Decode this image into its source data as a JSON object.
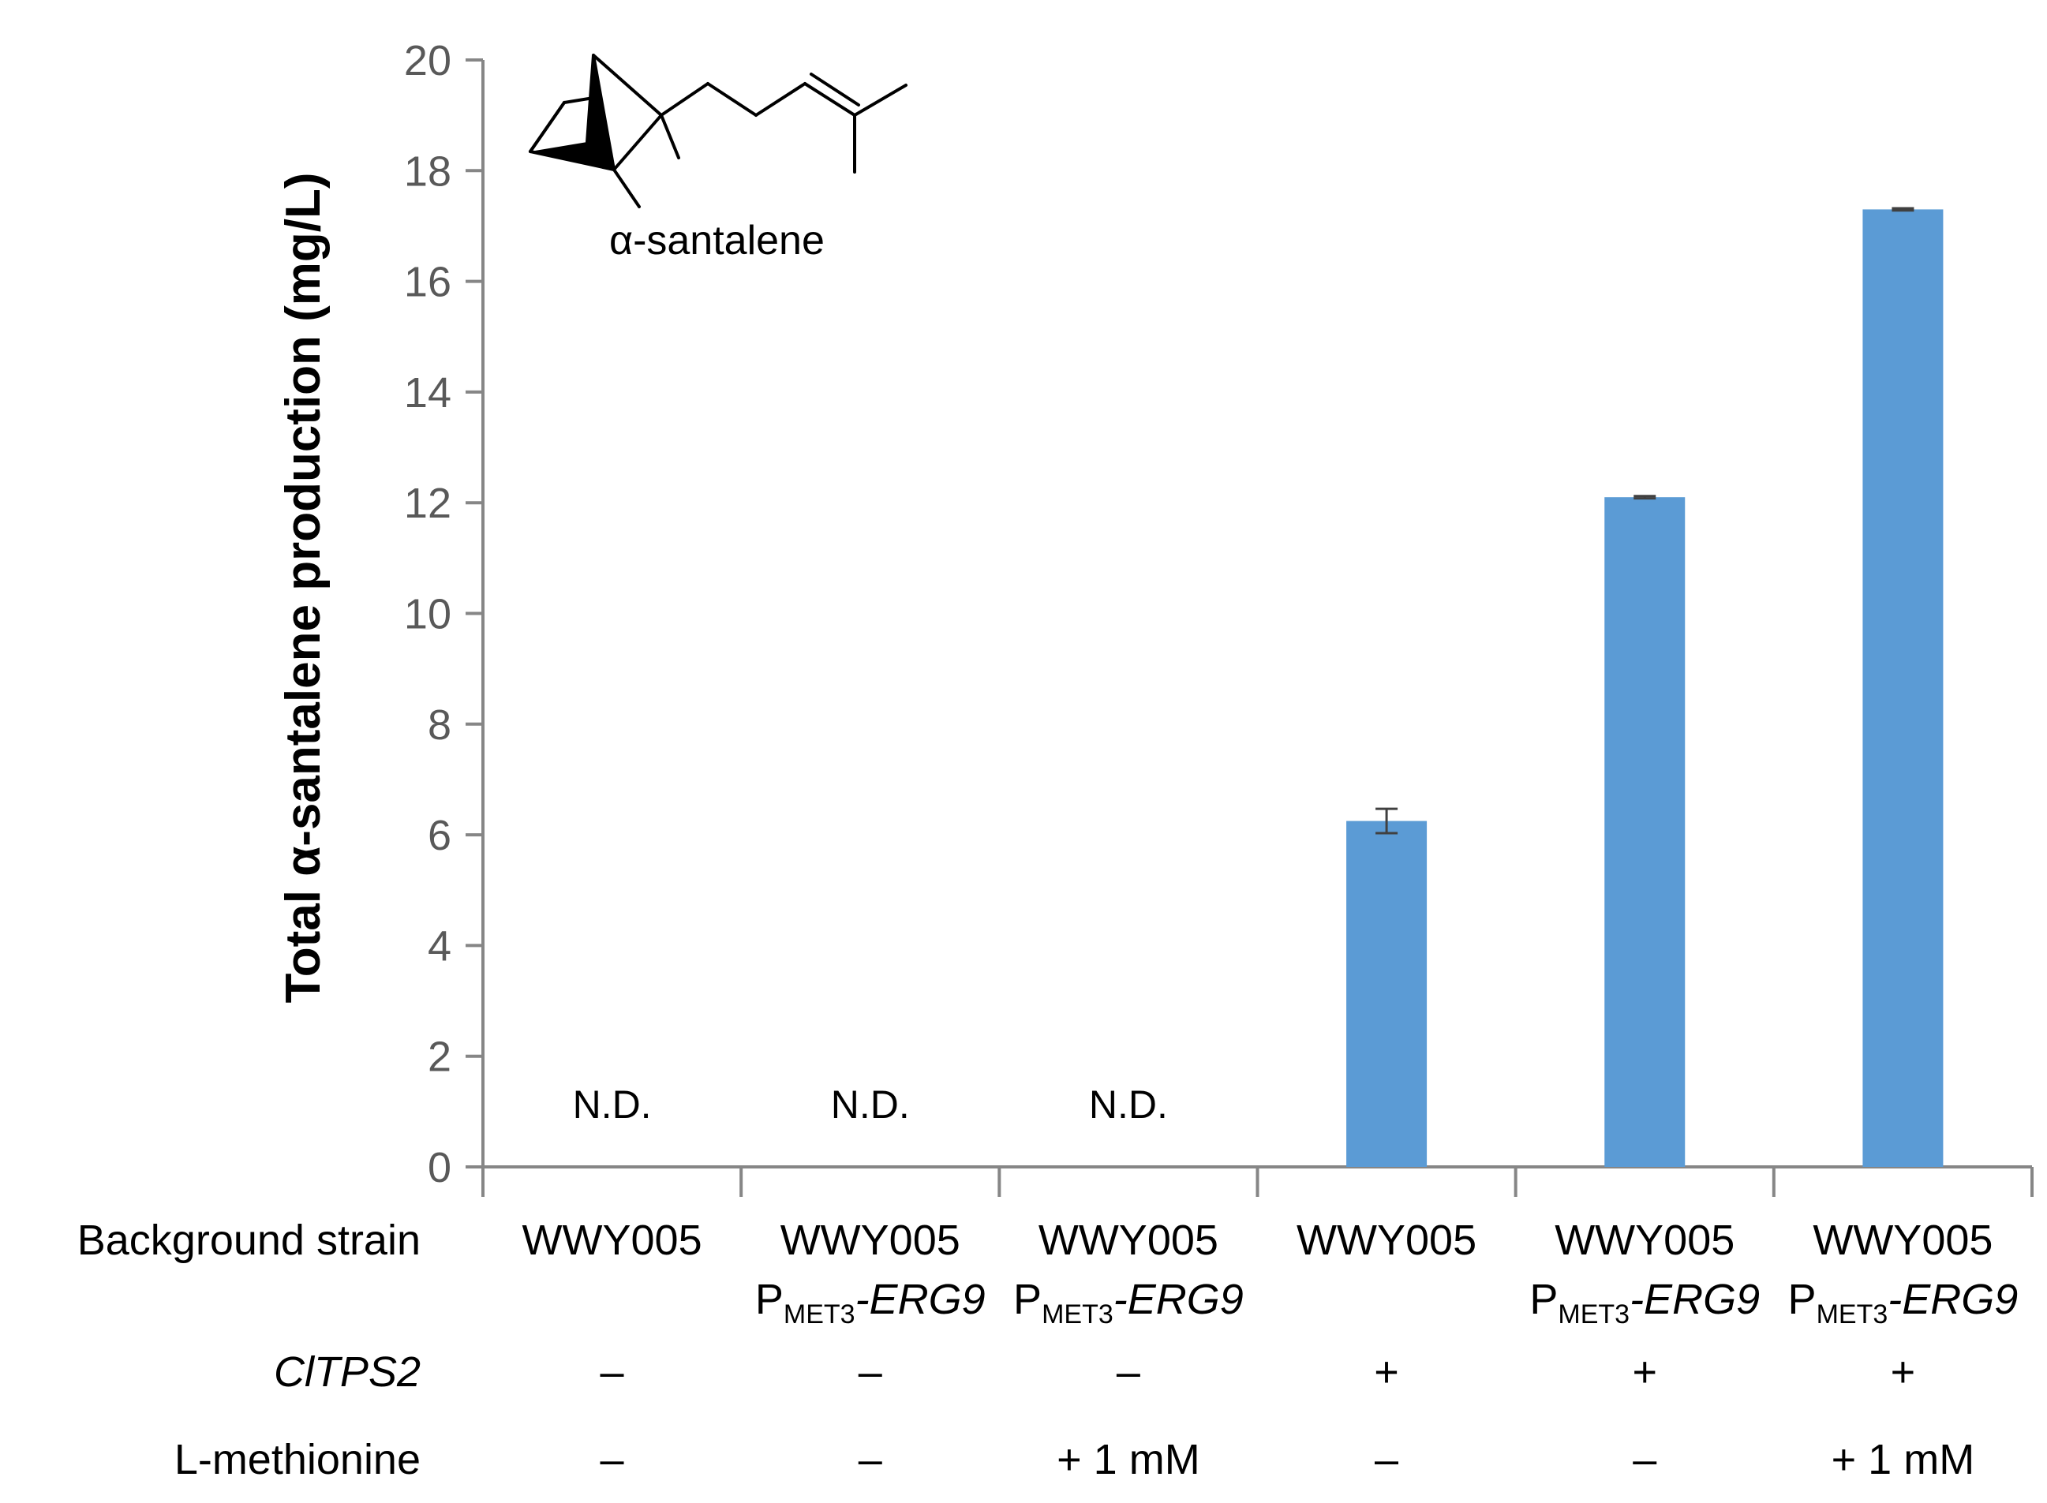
{
  "chart_data": {
    "type": "bar",
    "ylabel": "Total α-santalene production (mg/L)",
    "ylim": [
      0,
      20
    ],
    "yticks": [
      0,
      2,
      4,
      6,
      8,
      10,
      12,
      14,
      16,
      18,
      20
    ],
    "grid": false,
    "bar_color": "#5B9BD5",
    "axis_color": "#868686",
    "error_color": "#404040",
    "categories": [
      {
        "line1": "WWY005",
        "promoter": "",
        "promoter_sub": "",
        "gene": ""
      },
      {
        "line1": "WWY005",
        "promoter": "P",
        "promoter_sub": "MET3",
        "gene": "-ERG9"
      },
      {
        "line1": "WWY005",
        "promoter": "P",
        "promoter_sub": "MET3",
        "gene": "-ERG9"
      },
      {
        "line1": "WWY005",
        "promoter": "",
        "promoter_sub": "",
        "gene": ""
      },
      {
        "line1": "WWY005",
        "promoter": "P",
        "promoter_sub": "MET3",
        "gene": "-ERG9"
      },
      {
        "line1": "WWY005",
        "promoter": "P",
        "promoter_sub": "MET3",
        "gene": "-ERG9"
      }
    ],
    "values": [
      0,
      0,
      0,
      6.25,
      12.1,
      17.3
    ],
    "errors": [
      0,
      0,
      0,
      0.22,
      0.02,
      0.02
    ],
    "annotations": [
      "N.D.",
      "N.D.",
      "N.D.",
      "",
      "",
      ""
    ],
    "rows": [
      {
        "label": "Background strain",
        "italic": false
      },
      {
        "label": "ClTPS2",
        "italic": true,
        "values": [
          "–",
          "–",
          "–",
          "+",
          "+",
          "+"
        ]
      },
      {
        "label": "L-methionine",
        "italic": false,
        "values": [
          "–",
          "–",
          "+ 1 mM",
          "–",
          "–",
          "+ 1 mM"
        ]
      }
    ],
    "inset": {
      "label": "α-santalene",
      "icon": "alpha-santalene-structure"
    }
  }
}
